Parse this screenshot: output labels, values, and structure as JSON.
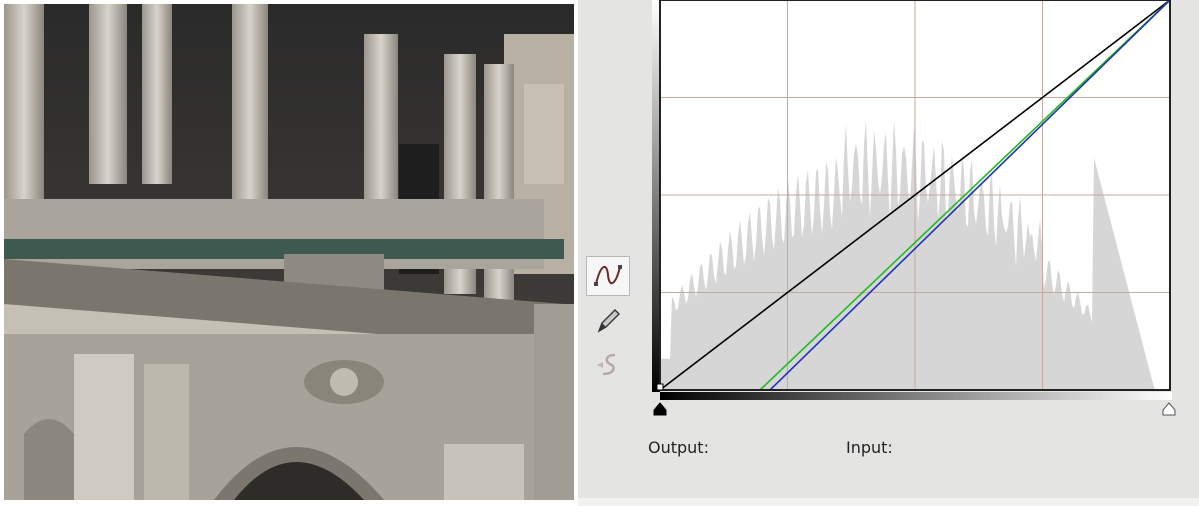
{
  "dialog": {
    "output_label": "Output:",
    "input_label": "Input:"
  },
  "tools": [
    {
      "name": "curve-tool-icon",
      "active": true
    },
    {
      "name": "pencil-tool-icon",
      "active": false
    },
    {
      "name": "smooth-tool-icon",
      "active": false
    }
  ],
  "curve_lines": [
    {
      "channel": "composite",
      "color": "#000000",
      "points": [
        [
          0,
          0
        ],
        [
          255,
          255
        ]
      ]
    },
    {
      "channel": "green",
      "color": "#22bb22",
      "points": [
        [
          0,
          0
        ],
        [
          50,
          0
        ],
        [
          255,
          255
        ]
      ]
    },
    {
      "channel": "blue",
      "color": "#2233bb",
      "points": [
        [
          0,
          0
        ],
        [
          55,
          0
        ],
        [
          255,
          255
        ]
      ]
    }
  ],
  "grid": {
    "divisions": 4,
    "line_color": "#c9a89e"
  },
  "colors": {
    "histogram": "#d6d6d6",
    "panel": "#e4e4e2"
  }
}
